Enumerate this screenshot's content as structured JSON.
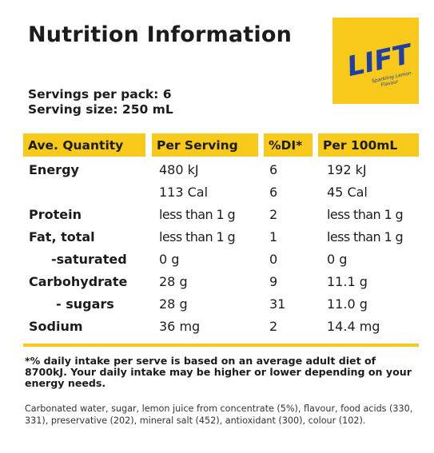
{
  "title": "Nutrition Information",
  "logo": {
    "brand": "LIFT",
    "tagline_line1": "Sparkling Lemon",
    "tagline_line2": "Flavour",
    "bg_color": "#f7c91a",
    "text_color": "#1e3fa6"
  },
  "servings_per_pack": "Servings per pack: 6",
  "serving_size": "Serving size: 250 mL",
  "table": {
    "headers": [
      "Ave. Quantity",
      "Per Serving",
      "%DI*",
      "Per 100mL"
    ],
    "rows": [
      {
        "label": "Energy",
        "per_serving": "480 kJ",
        "di": "6",
        "per_100ml": "192 kJ"
      },
      {
        "label": "",
        "per_serving": "113 Cal",
        "di": "6",
        "per_100ml": "45 Cal"
      },
      {
        "label": "Protein",
        "per_serving": "less than 1 g",
        "di": "2",
        "per_100ml": "less than 1 g"
      },
      {
        "label": "Fat, total",
        "per_serving": "less than 1 g",
        "di": "1",
        "per_100ml": "less than 1 g"
      },
      {
        "label": "-saturated",
        "per_serving": "0 g",
        "di": "0",
        "per_100ml": "0 g"
      },
      {
        "label": "Carbohydrate",
        "per_serving": "28 g",
        "di": "9",
        "per_100ml": "11.1 g"
      },
      {
        "label": "- sugars",
        "per_serving": "28 g",
        "di": "31",
        "per_100ml": "11.0 g"
      },
      {
        "label": "Sodium",
        "per_serving": "36 mg",
        "di": "2",
        "per_100ml": "14.4 mg"
      }
    ]
  },
  "footnote": "*% daily intake per serve is based on an average adult diet of 8700kJ. Your daily intake may be higher or lower depending on your energy needs.",
  "ingredients": "Carbonated water, sugar, lemon juice from concentrate (5%), flavour, food acids (330, 331), preservative (202), mineral salt (452), antioxidant (300), colour (102)."
}
